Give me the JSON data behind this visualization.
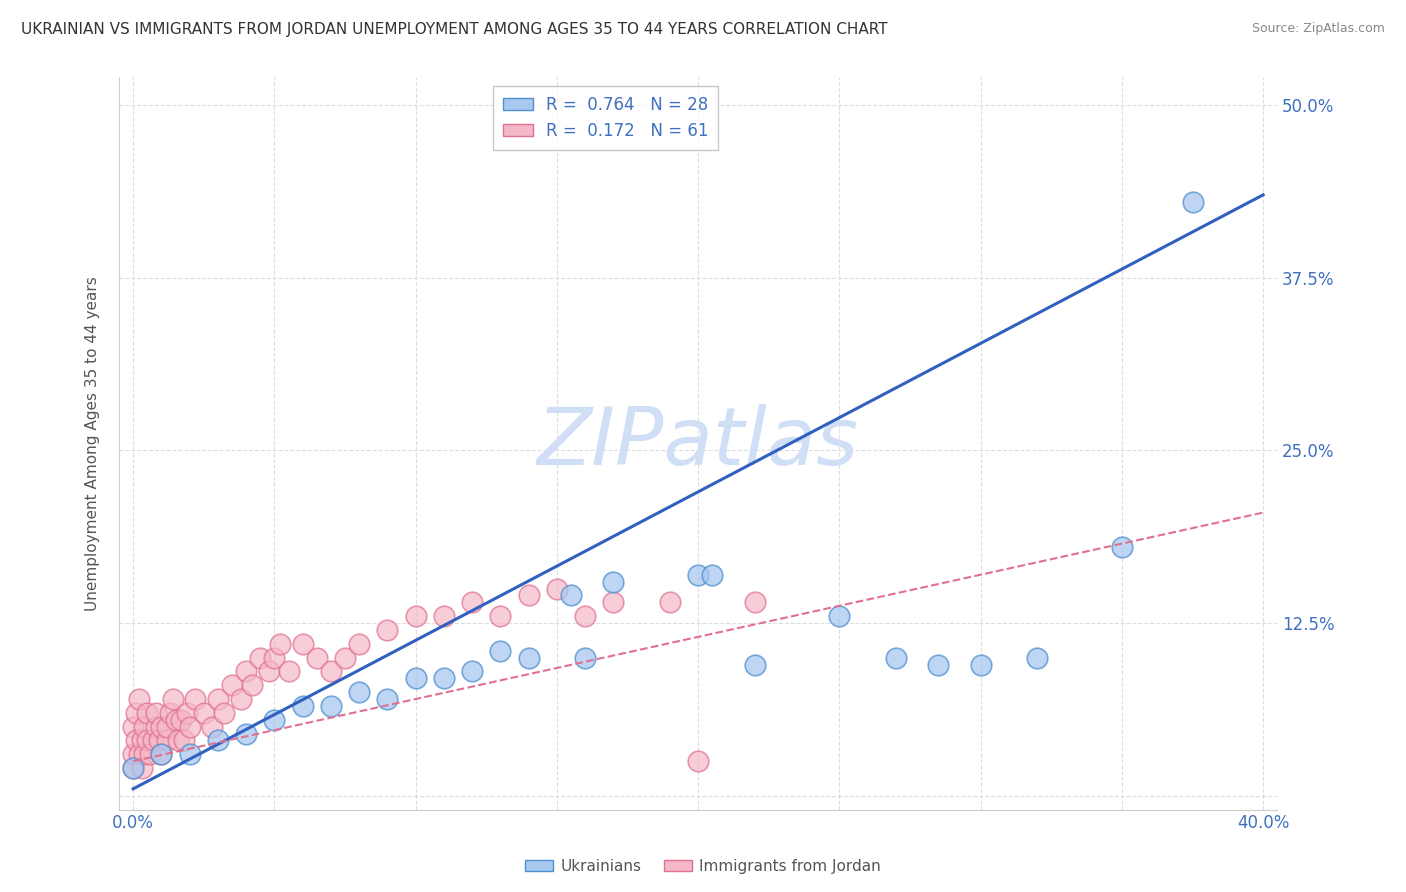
{
  "title": "UKRAINIAN VS IMMIGRANTS FROM JORDAN UNEMPLOYMENT AMONG AGES 35 TO 44 YEARS CORRELATION CHART",
  "source": "Source: ZipAtlas.com",
  "ylabel": "Unemployment Among Ages 35 to 44 years",
  "xlim": [
    -0.005,
    0.405
  ],
  "ylim": [
    -0.01,
    0.52
  ],
  "ytick_positions": [
    0.0,
    0.125,
    0.25,
    0.375,
    0.5
  ],
  "ytick_labels": [
    "",
    "12.5%",
    "25.0%",
    "37.5%",
    "50.0%"
  ],
  "x_grid": [
    0.0,
    0.05,
    0.1,
    0.15,
    0.2,
    0.25,
    0.3,
    0.35,
    0.4
  ],
  "background_color": "#ffffff",
  "grid_color": "#dddddd",
  "ukrainian_color": "#a8c8f0",
  "ukrainian_edge": "#5090d0",
  "jordan_color": "#f5b8c8",
  "jordan_edge": "#e07090",
  "trend_uk_color": "#3060c0",
  "trend_jd_color": "#e07090",
  "watermark_color": "#d0dff5",
  "uk_trend_x0": 0.0,
  "uk_trend_y0": 0.005,
  "uk_trend_x1": 0.4,
  "uk_trend_y1": 0.435,
  "jd_trend_x0": 0.0,
  "jd_trend_y0": 0.025,
  "jd_trend_x1": 0.4,
  "jd_trend_y1": 0.205,
  "ukrainians_x": [
    0.0,
    0.01,
    0.02,
    0.03,
    0.04,
    0.05,
    0.06,
    0.07,
    0.08,
    0.09,
    0.1,
    0.11,
    0.12,
    0.13,
    0.14,
    0.155,
    0.16,
    0.17,
    0.2,
    0.205,
    0.22,
    0.25,
    0.27,
    0.285,
    0.3,
    0.32,
    0.35,
    0.375
  ],
  "ukrainians_y": [
    0.02,
    0.03,
    0.03,
    0.04,
    0.045,
    0.055,
    0.065,
    0.065,
    0.075,
    0.07,
    0.085,
    0.085,
    0.09,
    0.105,
    0.1,
    0.145,
    0.1,
    0.155,
    0.16,
    0.16,
    0.095,
    0.13,
    0.1,
    0.095,
    0.095,
    0.1,
    0.18,
    0.43
  ],
  "jordan_x": [
    0.0,
    0.0,
    0.0,
    0.001,
    0.001,
    0.002,
    0.002,
    0.003,
    0.003,
    0.004,
    0.004,
    0.005,
    0.005,
    0.006,
    0.007,
    0.008,
    0.008,
    0.009,
    0.01,
    0.01,
    0.012,
    0.012,
    0.013,
    0.014,
    0.015,
    0.016,
    0.017,
    0.018,
    0.019,
    0.02,
    0.022,
    0.025,
    0.028,
    0.03,
    0.032,
    0.035,
    0.038,
    0.04,
    0.042,
    0.045,
    0.048,
    0.05,
    0.052,
    0.055,
    0.06,
    0.065,
    0.07,
    0.075,
    0.08,
    0.09,
    0.1,
    0.11,
    0.12,
    0.13,
    0.14,
    0.15,
    0.16,
    0.17,
    0.19,
    0.22,
    0.2
  ],
  "jordan_y": [
    0.02,
    0.03,
    0.05,
    0.04,
    0.06,
    0.03,
    0.07,
    0.02,
    0.04,
    0.03,
    0.05,
    0.04,
    0.06,
    0.03,
    0.04,
    0.05,
    0.06,
    0.04,
    0.03,
    0.05,
    0.04,
    0.05,
    0.06,
    0.07,
    0.055,
    0.04,
    0.055,
    0.04,
    0.06,
    0.05,
    0.07,
    0.06,
    0.05,
    0.07,
    0.06,
    0.08,
    0.07,
    0.09,
    0.08,
    0.1,
    0.09,
    0.1,
    0.11,
    0.09,
    0.11,
    0.1,
    0.09,
    0.1,
    0.11,
    0.12,
    0.13,
    0.13,
    0.14,
    0.13,
    0.145,
    0.15,
    0.13,
    0.14,
    0.14,
    0.14,
    0.025
  ]
}
